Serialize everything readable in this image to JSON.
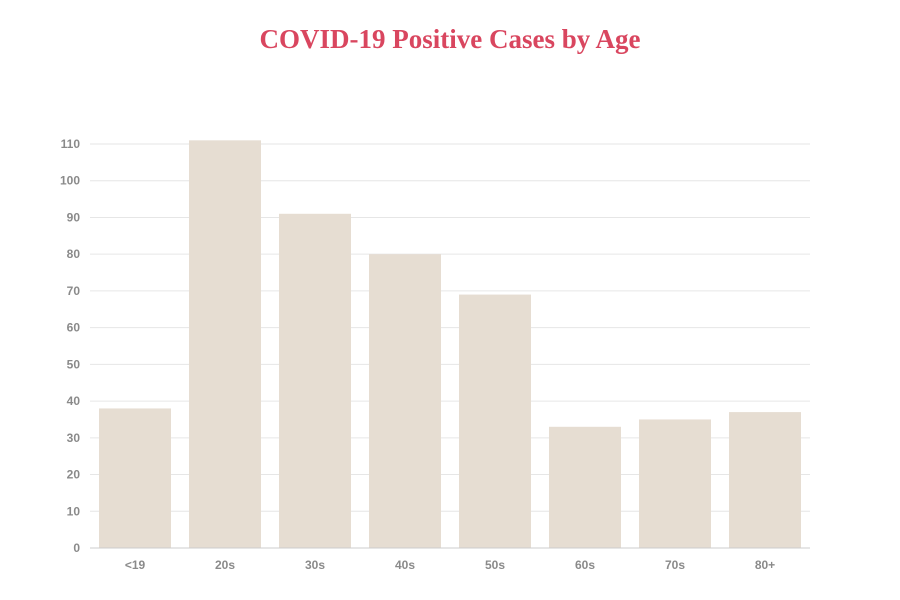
{
  "chart_data": {
    "type": "bar",
    "title": "COVID-19 Positive Cases by Age",
    "xlabel": "",
    "ylabel": "",
    "categories": [
      "<19",
      "20s",
      "30s",
      "40s",
      "50s",
      "60s",
      "70s",
      "80+"
    ],
    "values": [
      38,
      111,
      91,
      80,
      69,
      33,
      35,
      37
    ],
    "ylim": [
      0,
      110
    ],
    "yticks": [
      0,
      10,
      20,
      30,
      40,
      50,
      60,
      70,
      80,
      90,
      100,
      110
    ],
    "grid": true,
    "legend": "none"
  },
  "colors": {
    "title": "#d9465f",
    "bar": "#e6ddd2",
    "grid": "#e6e6e6",
    "axis": "#cccccc",
    "tick_label": "#8a8a8a"
  }
}
